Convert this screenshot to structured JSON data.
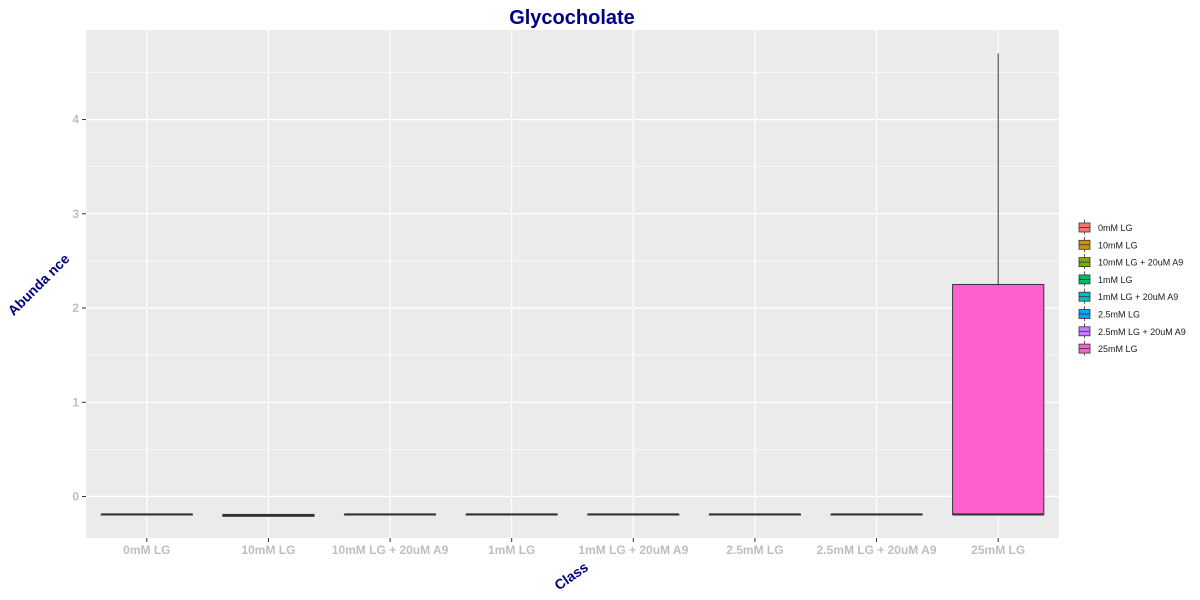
{
  "chart_data": {
    "type": "box",
    "title": "Glycocholate",
    "xlabel": "Class",
    "ylabel": "Abunda nce",
    "categories": [
      "0mM LG",
      "10mM LG",
      "10mM LG + 20uM A9",
      "1mM LG",
      "1mM LG + 20uM A9",
      "2.5mM LG",
      "2.5mM LG + 20uM A9",
      "25mM LG"
    ],
    "boxes": [
      {
        "min": -0.19,
        "q1": -0.19,
        "median": -0.19,
        "q3": -0.19,
        "max": -0.19
      },
      {
        "min": -0.21,
        "q1": -0.21,
        "median": -0.2,
        "q3": -0.19,
        "max": -0.19
      },
      {
        "min": -0.19,
        "q1": -0.19,
        "median": -0.19,
        "q3": -0.19,
        "max": -0.19
      },
      {
        "min": -0.19,
        "q1": -0.19,
        "median": -0.19,
        "q3": -0.19,
        "max": -0.19
      },
      {
        "min": -0.19,
        "q1": -0.19,
        "median": -0.19,
        "q3": -0.19,
        "max": -0.19
      },
      {
        "min": -0.19,
        "q1": -0.19,
        "median": -0.19,
        "q3": -0.19,
        "max": -0.19
      },
      {
        "min": -0.19,
        "q1": -0.19,
        "median": -0.19,
        "q3": -0.19,
        "max": -0.19
      },
      {
        "min": -0.19,
        "q1": -0.19,
        "median": -0.19,
        "q3": 2.25,
        "max": 4.7
      }
    ],
    "colors": [
      "#F8766D",
      "#CD9600",
      "#7CAE00",
      "#00BE67",
      "#00BFC4",
      "#00A9FF",
      "#C77CFF",
      "#FF61CC"
    ],
    "yticks": [
      0,
      1,
      2,
      3,
      4
    ],
    "ylim": [
      -0.44,
      4.95
    ],
    "grid": true,
    "panel_background": "#EBEBEB",
    "legend_position": "right",
    "legend": [
      "0mM LG",
      "10mM LG",
      "10mM LG + 20uM A9",
      "1mM LG",
      "1mM LG + 20uM A9",
      "2.5mM LG",
      "2.5mM LG + 20uM A9",
      "25mM LG"
    ]
  }
}
